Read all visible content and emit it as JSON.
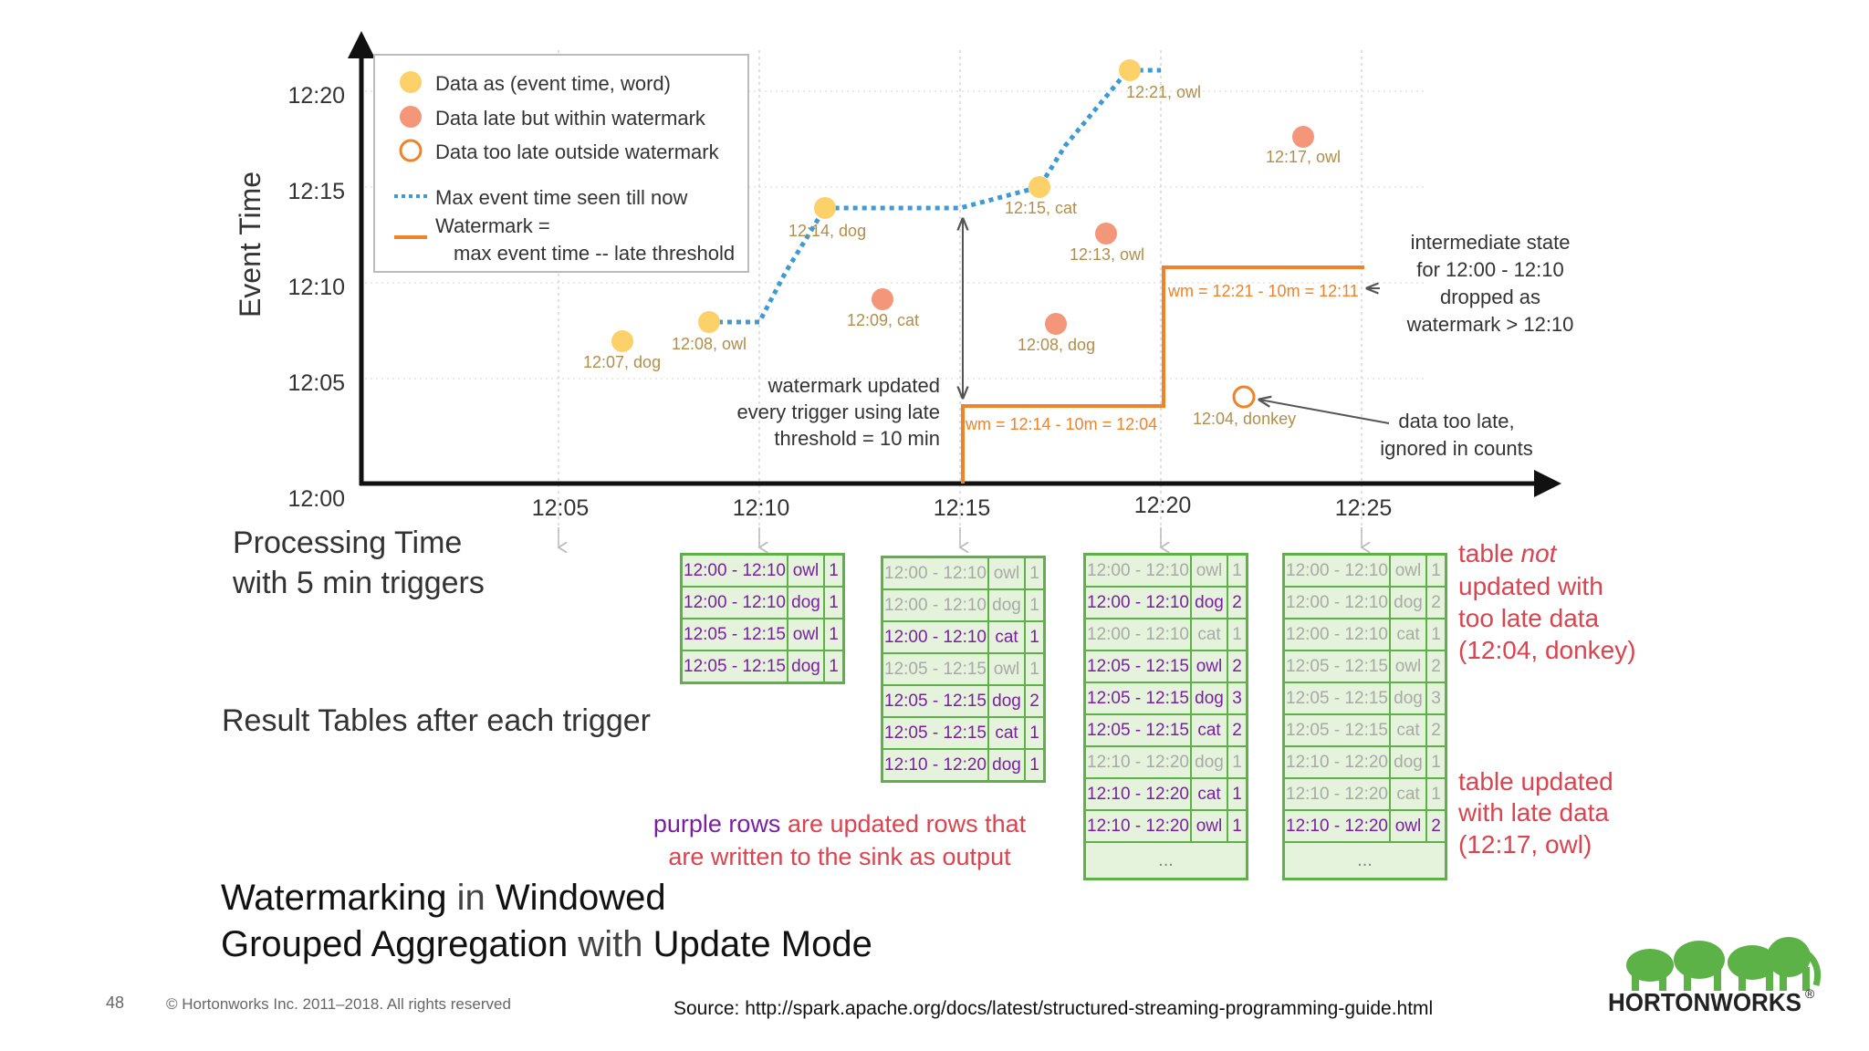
{
  "chart": {
    "y_axis_title": "Event Time",
    "y_ticks": [
      "12:00",
      "12:05",
      "12:10",
      "12:15",
      "12:20"
    ],
    "x_ticks": [
      "12:05",
      "12:10",
      "12:15",
      "12:20",
      "12:25"
    ],
    "x_axis_title_line1": "Processing Time",
    "x_axis_title_line2": "with 5 min triggers",
    "legend": {
      "data": "Data as (event time, word)",
      "late": "Data late but within watermark",
      "too_late": "Data too late outside watermark",
      "max_event": "Max event time seen till now",
      "watermark_line1": "Watermark =",
      "watermark_line2": "max event time -- late threshold"
    },
    "points": [
      {
        "label": "12:07, dog",
        "kind": "data"
      },
      {
        "label": "12:08, owl",
        "kind": "data"
      },
      {
        "label": "12:14, dog",
        "kind": "data"
      },
      {
        "label": "12:09, cat",
        "kind": "late"
      },
      {
        "label": "12:15, cat",
        "kind": "data"
      },
      {
        "label": "12:08, dog",
        "kind": "late"
      },
      {
        "label": "12:13, owl",
        "kind": "late"
      },
      {
        "label": "12:21, owl",
        "kind": "data"
      },
      {
        "label": "12:04, donkey",
        "kind": "too_late"
      },
      {
        "label": "12:17, owl",
        "kind": "late"
      }
    ],
    "wm_label_1": "wm = 12:14 - 10m = 12:04",
    "wm_label_2": "wm = 12:21 - 10m = 12:11",
    "annotation_update": [
      "watermark updated",
      "every trigger using late",
      "threshold = 10 min"
    ],
    "annotation_intermediate": [
      "intermediate state",
      "for 12:00 - 12:10",
      "dropped as",
      "watermark > 12:10"
    ],
    "annotation_too_late": [
      "data too late,",
      "ignored in counts"
    ]
  },
  "result_tables_label": "Result Tables after each trigger",
  "tables": [
    {
      "rows": [
        {
          "win": "12:00 - 12:10",
          "word": "owl",
          "count": "1",
          "updated": true
        },
        {
          "win": "12:00 - 12:10",
          "word": "dog",
          "count": "1",
          "updated": true
        },
        {
          "win": "12:05 - 12:15",
          "word": "owl",
          "count": "1",
          "updated": true
        },
        {
          "win": "12:05 - 12:15",
          "word": "dog",
          "count": "1",
          "updated": true
        }
      ],
      "ellipsis": ""
    },
    {
      "rows": [
        {
          "win": "12:00 - 12:10",
          "word": "owl",
          "count": "1",
          "updated": false
        },
        {
          "win": "12:00 - 12:10",
          "word": "dog",
          "count": "1",
          "updated": false
        },
        {
          "win": "12:00 - 12:10",
          "word": "cat",
          "count": "1",
          "updated": true
        },
        {
          "win": "12:05 - 12:15",
          "word": "owl",
          "count": "1",
          "updated": false
        },
        {
          "win": "12:05 - 12:15",
          "word": "dog",
          "count": "2",
          "updated": true
        },
        {
          "win": "12:05 - 12:15",
          "word": "cat",
          "count": "1",
          "updated": true
        },
        {
          "win": "12:10 - 12:20",
          "word": "dog",
          "count": "1",
          "updated": true
        }
      ],
      "ellipsis": ""
    },
    {
      "rows": [
        {
          "win": "12:00 - 12:10",
          "word": "owl",
          "count": "1",
          "updated": false
        },
        {
          "win": "12:00 - 12:10",
          "word": "dog",
          "count": "2",
          "updated": true
        },
        {
          "win": "12:00 - 12:10",
          "word": "cat",
          "count": "1",
          "updated": false
        },
        {
          "win": "12:05 - 12:15",
          "word": "owl",
          "count": "2",
          "updated": true
        },
        {
          "win": "12:05 - 12:15",
          "word": "dog",
          "count": "3",
          "updated": true
        },
        {
          "win": "12:05 - 12:15",
          "word": "cat",
          "count": "2",
          "updated": true
        },
        {
          "win": "12:10 - 12:20",
          "word": "dog",
          "count": "1",
          "updated": false
        },
        {
          "win": "12:10 - 12:20",
          "word": "cat",
          "count": "1",
          "updated": true
        },
        {
          "win": "12:10 - 12:20",
          "word": "owl",
          "count": "1",
          "updated": true
        }
      ],
      "ellipsis": "..."
    },
    {
      "rows": [
        {
          "win": "12:00 - 12:10",
          "word": "owl",
          "count": "1",
          "updated": false
        },
        {
          "win": "12:00 - 12:10",
          "word": "dog",
          "count": "2",
          "updated": false
        },
        {
          "win": "12:00 - 12:10",
          "word": "cat",
          "count": "1",
          "updated": false
        },
        {
          "win": "12:05 - 12:15",
          "word": "owl",
          "count": "2",
          "updated": false
        },
        {
          "win": "12:05 - 12:15",
          "word": "dog",
          "count": "3",
          "updated": false
        },
        {
          "win": "12:05 - 12:15",
          "word": "cat",
          "count": "2",
          "updated": false
        },
        {
          "win": "12:10 - 12:20",
          "word": "dog",
          "count": "1",
          "updated": false
        },
        {
          "win": "12:10 - 12:20",
          "word": "cat",
          "count": "1",
          "updated": false
        },
        {
          "win": "12:10 - 12:20",
          "word": "owl",
          "count": "2",
          "updated": true
        }
      ],
      "ellipsis": "..."
    }
  ],
  "note_not_updated": {
    "pre": "table ",
    "em": "not",
    "post": "updated with",
    "line3": "too late data",
    "line4": "(12:04, donkey)"
  },
  "note_updated": [
    "table updated",
    "with late data",
    "(12:17, owl)"
  ],
  "purple_note": {
    "purple": "purple rows",
    "rest1": " are updated rows that",
    "rest2": "are written to the sink as output"
  },
  "title": {
    "w1": "Watermarking",
    "w2": " in ",
    "w3": "Windowed",
    "w4": "Grouped Aggregation",
    "w5": " with ",
    "w6": "Update Mode"
  },
  "footer": {
    "page_number": "48",
    "copyright": "© Hortonworks Inc. 2011–2018. All rights reserved",
    "source": "Source: http://spark.apache.org/docs/latest/structured-streaming-programming-guide.html",
    "logo_text": "HORTONWORKS",
    "logo_mark": "®"
  },
  "colors": {
    "data": "#fcd16a",
    "late": "#f3967a",
    "watermark": "#f0822a",
    "max_event": "#3c9ad4",
    "table_border": "#5cb246",
    "table_fill": "#e5f2dc",
    "updated_row": "#7a1fa2",
    "note_red": "#d9444f",
    "label_gold": "#b28e4a"
  }
}
